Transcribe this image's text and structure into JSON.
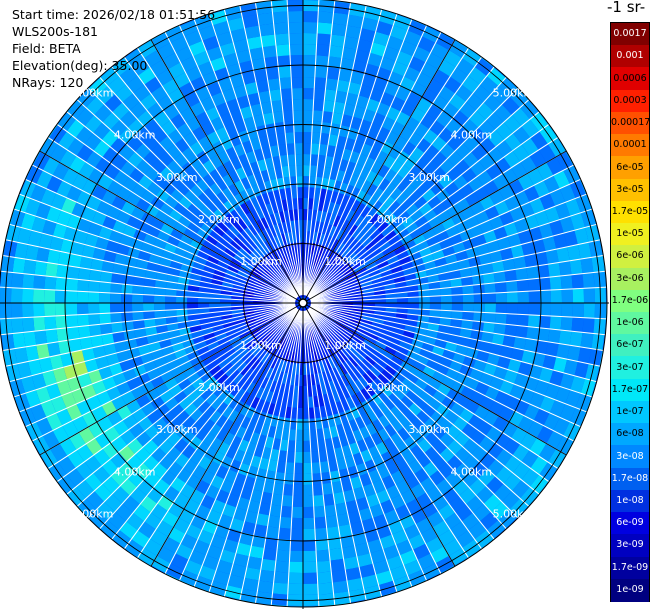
{
  "info": {
    "start_time": "Start time: 2026/02/18 01:51:56",
    "instrument": "WLS200s-181",
    "field": "Field: BETA",
    "elevation": "Elevation(deg): 35.00",
    "nrays": "NRays: 120"
  },
  "units_label": "-1 sr-",
  "range_rings": [
    "1.00km",
    "2.00km",
    "3.00km",
    "4.00km",
    "5.00km"
  ],
  "colorbar": {
    "ticks": [
      "0.0017",
      "0.001",
      "0.0006",
      "0.0003",
      "0.00017",
      "0.0001",
      "6e-05",
      "3e-05",
      "1.7e-05",
      "1e-05",
      "6e-06",
      "3e-06",
      "1.7e-06",
      "1e-06",
      "6e-07",
      "3e-07",
      "1.7e-07",
      "1e-07",
      "6e-08",
      "3e-08",
      "1.7e-08",
      "1e-08",
      "6e-09",
      "3e-09",
      "1.7e-09",
      "1e-09"
    ],
    "colors": [
      "#800000",
      "#b00000",
      "#e00000",
      "#ff2000",
      "#ff5000",
      "#ff7a00",
      "#ffa000",
      "#ffc000",
      "#ffe000",
      "#f0f020",
      "#d0f040",
      "#a8f060",
      "#80ff80",
      "#60f8a0",
      "#40f0c0",
      "#20f0e0",
      "#00e8f8",
      "#00c8ff",
      "#00a8ff",
      "#0088ff",
      "#0060f0",
      "#0030e0",
      "#0000e0",
      "#0000c0",
      "#00009f",
      "#000080"
    ]
  }
}
